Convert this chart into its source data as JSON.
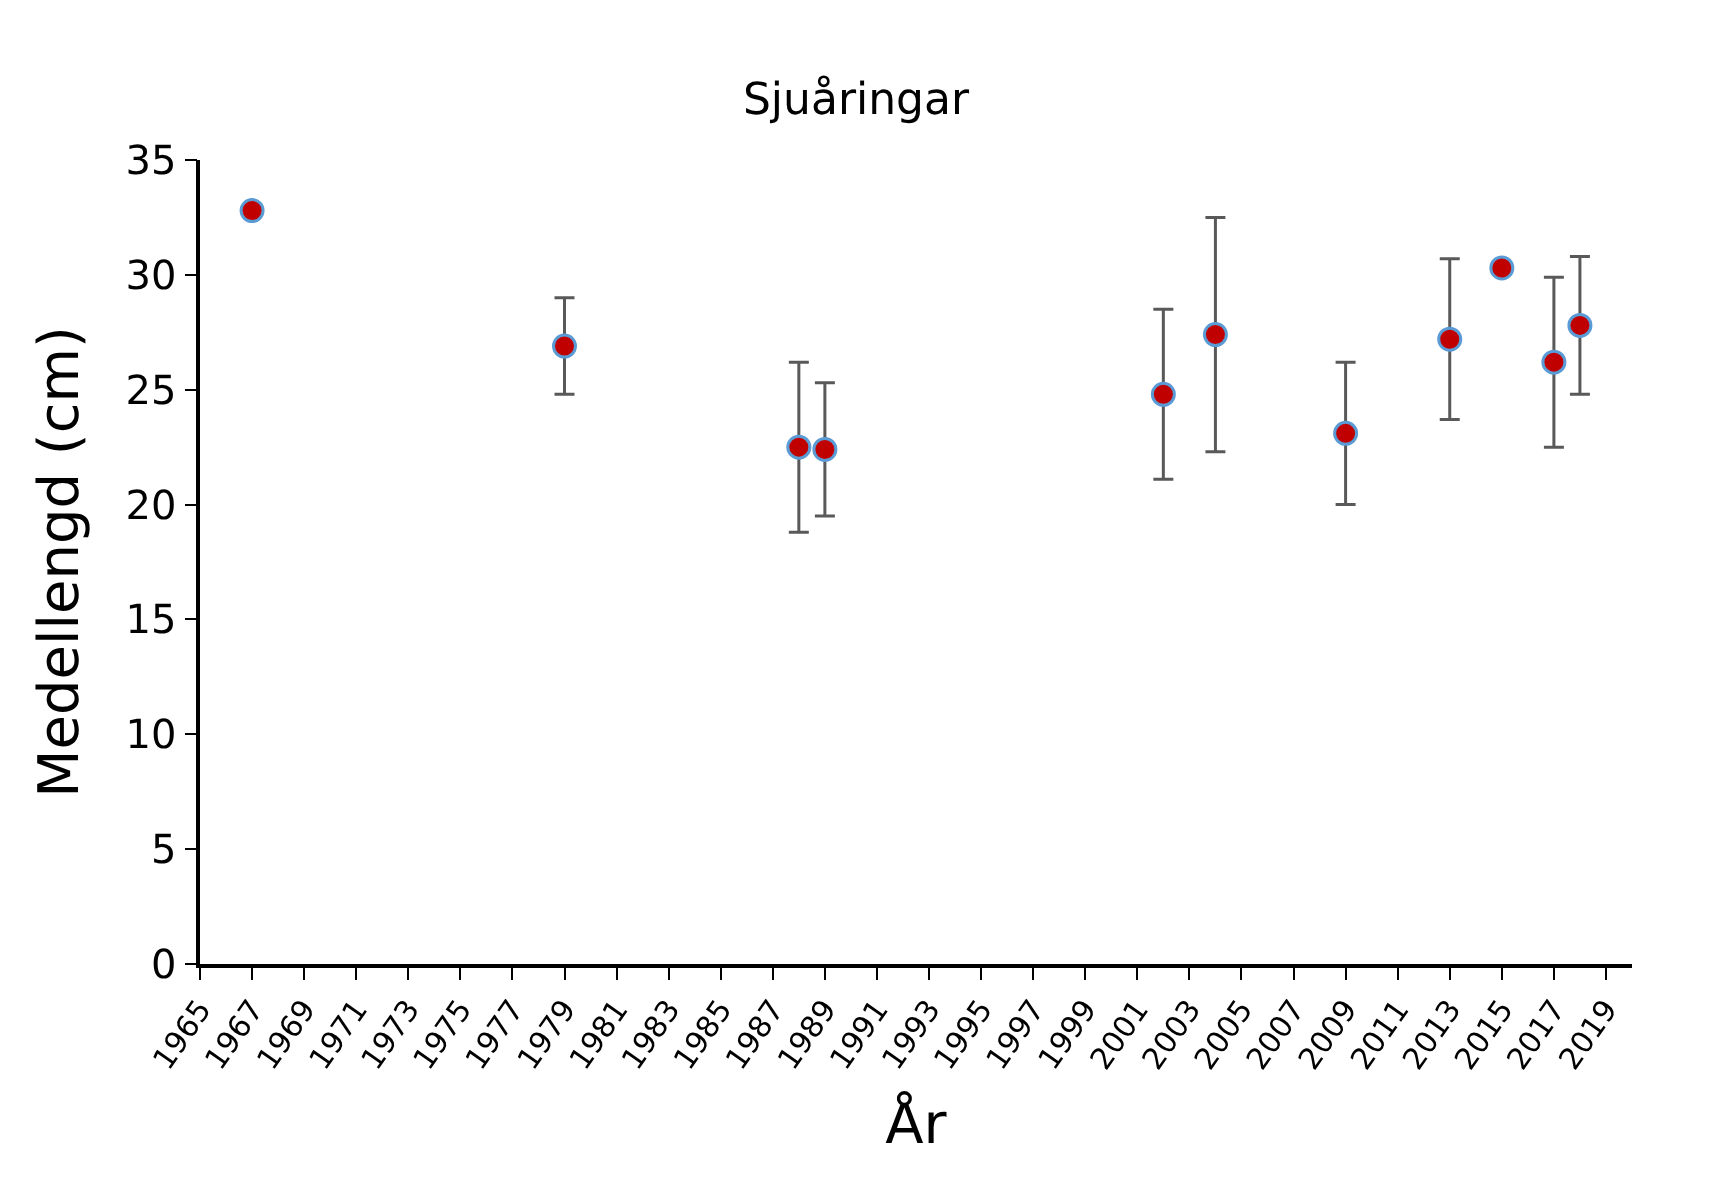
{
  "chart_data": {
    "type": "scatter",
    "title": "Sjuåringar",
    "xlabel": "År",
    "ylabel": "Medellengd (cm)",
    "x": [
      1967,
      1979,
      1988,
      1989,
      2002,
      2004,
      2009,
      2013,
      2015,
      2017,
      2018
    ],
    "series": [
      {
        "color": "#c00000",
        "values": [
          32.8,
          26.9,
          22.5,
          22.4,
          24.8,
          27.4,
          23.1,
          27.2,
          30.3,
          26.2,
          27.8
        ],
        "errors": [
          null,
          [
            24.8,
            29.0
          ],
          [
            18.8,
            26.2
          ],
          [
            19.5,
            25.3
          ],
          [
            21.1,
            28.5
          ],
          [
            22.3,
            32.5
          ],
          [
            20.0,
            26.2
          ],
          [
            23.7,
            30.7
          ],
          null,
          [
            22.5,
            29.9
          ],
          [
            24.8,
            30.8
          ]
        ]
      }
    ],
    "xlim": [
      1965,
      2020
    ],
    "xticks": [
      1965,
      1967,
      1969,
      1971,
      1973,
      1975,
      1977,
      1979,
      1981,
      1983,
      1985,
      1987,
      1989,
      1991,
      1993,
      1995,
      1997,
      1999,
      2001,
      2003,
      2005,
      2007,
      2009,
      2011,
      2013,
      2015,
      2017,
      2019
    ],
    "ylim": [
      0,
      35
    ],
    "yticks": [
      0,
      5,
      10,
      15,
      20,
      25,
      30,
      35
    ],
    "marker": "circle"
  }
}
